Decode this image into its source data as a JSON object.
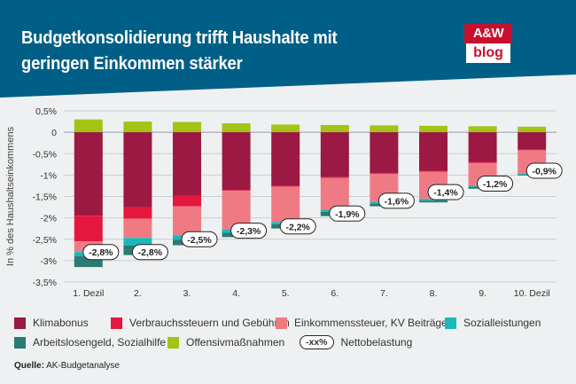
{
  "header": {
    "title": "Budgetkonsolidierung trifft Haushalte mit geringen Einkommen stärker",
    "logo_top": "A&W",
    "logo_bottom": "blog"
  },
  "colors": {
    "header_bg": "#005f86",
    "Klimabonus": "#9b1942",
    "Verbrauchssteuern": "#e5173f",
    "Einkommenssteuer": "#f07a84",
    "Sozialleistungen": "#19b9b9",
    "Arbeitslosengeld": "#2a7b74",
    "Offensiv": "#a3c315"
  },
  "chart_data": {
    "type": "bar",
    "stacked": true,
    "title": "Budgetkonsolidierung trifft Haushalte mit geringen Einkommen stärker",
    "xlabel": "",
    "ylabel": "In % des Haushaltseinkommens",
    "ylim": [
      -3.5,
      0.5
    ],
    "yticks": [
      0.5,
      0,
      -0.5,
      -1,
      -1.5,
      -2,
      -2.5,
      -3,
      -3.5
    ],
    "ytick_labels": [
      "0,5%",
      "0",
      "-0,5%",
      "-1%",
      "-1,5%",
      "-2%",
      "-2,5%",
      "-3%",
      "-3,5%"
    ],
    "categories": [
      "1. Dezil",
      "2.",
      "3.",
      "4.",
      "5.",
      "6.",
      "7.",
      "8.",
      "9.",
      "10. Dezil"
    ],
    "series": [
      {
        "name": "Offensivmaßnahmen",
        "color_key": "Offensiv",
        "values": [
          0.3,
          0.25,
          0.24,
          0.21,
          0.18,
          0.17,
          0.16,
          0.15,
          0.14,
          0.13
        ]
      },
      {
        "name": "Klimabonus",
        "color_key": "Klimabonus",
        "values": [
          -1.95,
          -1.75,
          -1.48,
          -1.35,
          -1.25,
          -1.05,
          -0.95,
          -0.9,
          -0.7,
          -0.4
        ]
      },
      {
        "name": "Verbrauchssteuern und Gebühren",
        "color_key": "Verbrauchssteuern",
        "values": [
          -0.6,
          -0.27,
          -0.25,
          -0.02,
          -0.02,
          -0.02,
          -0.02,
          -0.02,
          -0.02,
          -0.02
        ]
      },
      {
        "name": "Einkommenssteuer, KV Beiträge",
        "color_key": "Einkommenssteuer",
        "values": [
          -0.25,
          -0.45,
          -0.68,
          -0.9,
          -0.83,
          -0.74,
          -0.66,
          -0.64,
          -0.53,
          -0.55
        ]
      },
      {
        "name": "Sozialleistungen",
        "color_key": "Sozialleistungen",
        "values": [
          -0.1,
          -0.18,
          -0.1,
          -0.08,
          -0.05,
          -0.05,
          -0.04,
          -0.04,
          -0.03,
          -0.02
        ]
      },
      {
        "name": "Arbeitslosengeld, Sozialhilfe",
        "color_key": "Arbeitslosengeld",
        "values": [
          -0.25,
          -0.22,
          -0.13,
          -0.1,
          -0.1,
          -0.1,
          -0.06,
          -0.04,
          -0.04,
          -0.02
        ]
      }
    ],
    "net": [
      -2.8,
      -2.8,
      -2.5,
      -2.3,
      -2.2,
      -1.9,
      -1.6,
      -1.4,
      -1.2,
      -0.9
    ],
    "net_labels": [
      "-2,8%",
      "-2,8%",
      "-2,5%",
      "-2,3%",
      "-2,2%",
      "-1,9%",
      "-1,6%",
      "-1,4%",
      "-1,2%",
      "-0,9%"
    ],
    "grid": true
  },
  "legend": {
    "items": [
      {
        "label": "Klimabonus",
        "color_key": "Klimabonus"
      },
      {
        "label": "Verbrauchssteuern und Gebühren",
        "color_key": "Verbrauchssteuern"
      },
      {
        "label": "Einkommenssteuer, KV Beiträge",
        "color_key": "Einkommenssteuer"
      },
      {
        "label": "Sozialleistungen",
        "color_key": "Sozialleistungen"
      },
      {
        "label": "Arbeitslosengeld, Sozialhilfe",
        "color_key": "Arbeitslosengeld"
      },
      {
        "label": "Offensivmaßnahmen",
        "color_key": "Offensiv"
      }
    ],
    "net_symbol": "-xx%",
    "net_label": "Nettobelastung"
  },
  "source": {
    "label": "Quelle:",
    "text": "AK-Budgetanalyse"
  }
}
